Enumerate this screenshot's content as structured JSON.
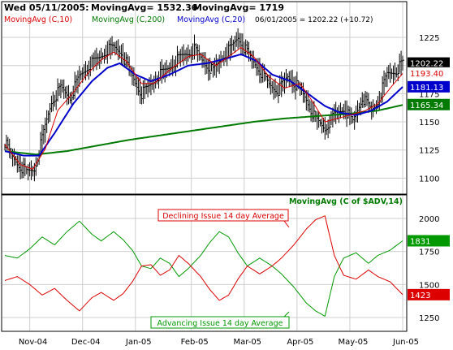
{
  "header": {
    "line1_prefix": "Wed 05/11/2005:",
    "line1_ma1": "MovingAvg= 1532.36",
    "line1_ma2": "MovingAvg= 1719",
    "legend_ma10": "MovingAvg (C,10)",
    "legend_ma200": "MovingAvg (C,200)",
    "legend_ma20": "MovingAvg (C,20)",
    "last_quote": "06/01/2005 = 1202.22 (+10.72)",
    "lower_title": "MovingAvg (C of $ADV,14)"
  },
  "colors": {
    "price": "#000000",
    "ma10": "#dd0000",
    "ma20": "#0000cc",
    "ma200": "#007a00",
    "advancing": "#009900",
    "declining": "#dd0000",
    "grid": "#cfcfcf"
  },
  "annotations": {
    "declining": "Declining Issue 14 day Average",
    "advancing": "Advancing Issue 14 day Average"
  },
  "chart_data": [
    {
      "type": "line",
      "panel": "upper",
      "y_ticks": [
        1100,
        1125,
        1150,
        1175,
        1200,
        1225
      ],
      "ylim": [
        1088,
        1238
      ],
      "x_ticks": [
        "Nov-04",
        "Dec-04",
        "Jan-05",
        "Feb-05",
        "Mar-05",
        "Apr-05",
        "May-05",
        "Jun-05"
      ],
      "price_label": "1202.22",
      "ma10_label": "1193.40",
      "ma20_label": "1181.13",
      "ma200_label": "1165.34",
      "close_keypoints": [
        [
          0,
          1132
        ],
        [
          4,
          1120
        ],
        [
          9,
          1112
        ],
        [
          14,
          1105
        ],
        [
          19,
          1108
        ],
        [
          24,
          1135
        ],
        [
          30,
          1168
        ],
        [
          36,
          1180
        ],
        [
          42,
          1172
        ],
        [
          48,
          1190
        ],
        [
          54,
          1200
        ],
        [
          60,
          1206
        ],
        [
          66,
          1214
        ],
        [
          70,
          1216
        ],
        [
          75,
          1212
        ],
        [
          80,
          1196
        ],
        [
          84,
          1185
        ],
        [
          88,
          1175
        ],
        [
          92,
          1180
        ],
        [
          98,
          1190
        ],
        [
          104,
          1196
        ],
        [
          110,
          1204
        ],
        [
          116,
          1210
        ],
        [
          122,
          1214
        ],
        [
          128,
          1203
        ],
        [
          134,
          1195
        ],
        [
          140,
          1208
        ],
        [
          146,
          1216
        ],
        [
          150,
          1225
        ],
        [
          154,
          1216
        ],
        [
          158,
          1207
        ],
        [
          164,
          1196
        ],
        [
          170,
          1183
        ],
        [
          176,
          1178
        ],
        [
          182,
          1190
        ],
        [
          188,
          1182
        ],
        [
          194,
          1170
        ],
        [
          200,
          1152
        ],
        [
          206,
          1144
        ],
        [
          212,
          1156
        ],
        [
          218,
          1162
        ],
        [
          224,
          1150
        ],
        [
          230,
          1172
        ],
        [
          236,
          1160
        ],
        [
          240,
          1168
        ],
        [
          246,
          1192
        ],
        [
          252,
          1196
        ],
        [
          256,
          1202
        ]
      ],
      "ma10_keypoints": [
        [
          0,
          1130
        ],
        [
          10,
          1112
        ],
        [
          18,
          1108
        ],
        [
          26,
          1126
        ],
        [
          34,
          1160
        ],
        [
          44,
          1176
        ],
        [
          54,
          1194
        ],
        [
          62,
          1205
        ],
        [
          70,
          1212
        ],
        [
          78,
          1204
        ],
        [
          88,
          1184
        ],
        [
          96,
          1184
        ],
        [
          106,
          1196
        ],
        [
          118,
          1208
        ],
        [
          126,
          1210
        ],
        [
          136,
          1200
        ],
        [
          146,
          1210
        ],
        [
          152,
          1216
        ],
        [
          160,
          1208
        ],
        [
          170,
          1190
        ],
        [
          180,
          1180
        ],
        [
          190,
          1184
        ],
        [
          198,
          1168
        ],
        [
          206,
          1150
        ],
        [
          214,
          1153
        ],
        [
          222,
          1156
        ],
        [
          232,
          1160
        ],
        [
          240,
          1166
        ],
        [
          248,
          1180
        ],
        [
          256,
          1193
        ]
      ],
      "ma20_keypoints": [
        [
          0,
          1124
        ],
        [
          12,
          1120
        ],
        [
          22,
          1120
        ],
        [
          32,
          1140
        ],
        [
          44,
          1166
        ],
        [
          56,
          1186
        ],
        [
          66,
          1198
        ],
        [
          74,
          1202
        ],
        [
          84,
          1192
        ],
        [
          94,
          1186
        ],
        [
          106,
          1192
        ],
        [
          118,
          1200
        ],
        [
          130,
          1202
        ],
        [
          142,
          1206
        ],
        [
          152,
          1210
        ],
        [
          162,
          1204
        ],
        [
          172,
          1192
        ],
        [
          184,
          1186
        ],
        [
          196,
          1174
        ],
        [
          206,
          1164
        ],
        [
          216,
          1158
        ],
        [
          226,
          1156
        ],
        [
          236,
          1160
        ],
        [
          246,
          1168
        ],
        [
          256,
          1181
        ]
      ],
      "ma200_keypoints": [
        [
          0,
          1124
        ],
        [
          20,
          1121
        ],
        [
          40,
          1124
        ],
        [
          60,
          1129
        ],
        [
          80,
          1134
        ],
        [
          100,
          1138
        ],
        [
          120,
          1142
        ],
        [
          140,
          1146
        ],
        [
          160,
          1150
        ],
        [
          180,
          1153
        ],
        [
          200,
          1155
        ],
        [
          220,
          1157
        ],
        [
          240,
          1160
        ],
        [
          256,
          1165
        ]
      ]
    },
    {
      "type": "line",
      "panel": "lower",
      "y_ticks": [
        1250,
        1500,
        1750,
        2000
      ],
      "ylim": [
        1170,
        2080
      ],
      "advancing_label": "1831",
      "declining_label": "1423",
      "advancing_keypoints": [
        [
          0,
          1720
        ],
        [
          8,
          1700
        ],
        [
          16,
          1770
        ],
        [
          24,
          1860
        ],
        [
          32,
          1800
        ],
        [
          40,
          1900
        ],
        [
          48,
          1980
        ],
        [
          56,
          1880
        ],
        [
          62,
          1830
        ],
        [
          70,
          1900
        ],
        [
          76,
          1840
        ],
        [
          82,
          1760
        ],
        [
          88,
          1640
        ],
        [
          94,
          1620
        ],
        [
          100,
          1700
        ],
        [
          106,
          1660
        ],
        [
          112,
          1560
        ],
        [
          118,
          1620
        ],
        [
          126,
          1720
        ],
        [
          132,
          1820
        ],
        [
          138,
          1900
        ],
        [
          144,
          1860
        ],
        [
          150,
          1740
        ],
        [
          156,
          1640
        ],
        [
          164,
          1700
        ],
        [
          172,
          1640
        ],
        [
          178,
          1580
        ],
        [
          186,
          1480
        ],
        [
          194,
          1360
        ],
        [
          200,
          1300
        ],
        [
          206,
          1260
        ],
        [
          212,
          1560
        ],
        [
          218,
          1700
        ],
        [
          226,
          1740
        ],
        [
          234,
          1660
        ],
        [
          240,
          1720
        ],
        [
          248,
          1760
        ],
        [
          256,
          1831
        ]
      ],
      "declining_keypoints": [
        [
          0,
          1530
        ],
        [
          8,
          1560
        ],
        [
          16,
          1500
        ],
        [
          24,
          1420
        ],
        [
          32,
          1470
        ],
        [
          40,
          1380
        ],
        [
          48,
          1300
        ],
        [
          56,
          1400
        ],
        [
          62,
          1440
        ],
        [
          70,
          1380
        ],
        [
          76,
          1430
        ],
        [
          82,
          1520
        ],
        [
          88,
          1640
        ],
        [
          94,
          1650
        ],
        [
          100,
          1570
        ],
        [
          106,
          1610
        ],
        [
          112,
          1720
        ],
        [
          118,
          1660
        ],
        [
          126,
          1560
        ],
        [
          132,
          1460
        ],
        [
          138,
          1380
        ],
        [
          144,
          1420
        ],
        [
          150,
          1540
        ],
        [
          156,
          1640
        ],
        [
          164,
          1580
        ],
        [
          172,
          1640
        ],
        [
          178,
          1700
        ],
        [
          186,
          1800
        ],
        [
          194,
          1920
        ],
        [
          200,
          1990
        ],
        [
          206,
          2020
        ],
        [
          212,
          1720
        ],
        [
          218,
          1570
        ],
        [
          226,
          1540
        ],
        [
          234,
          1610
        ],
        [
          240,
          1560
        ],
        [
          248,
          1520
        ],
        [
          256,
          1423
        ]
      ]
    }
  ]
}
